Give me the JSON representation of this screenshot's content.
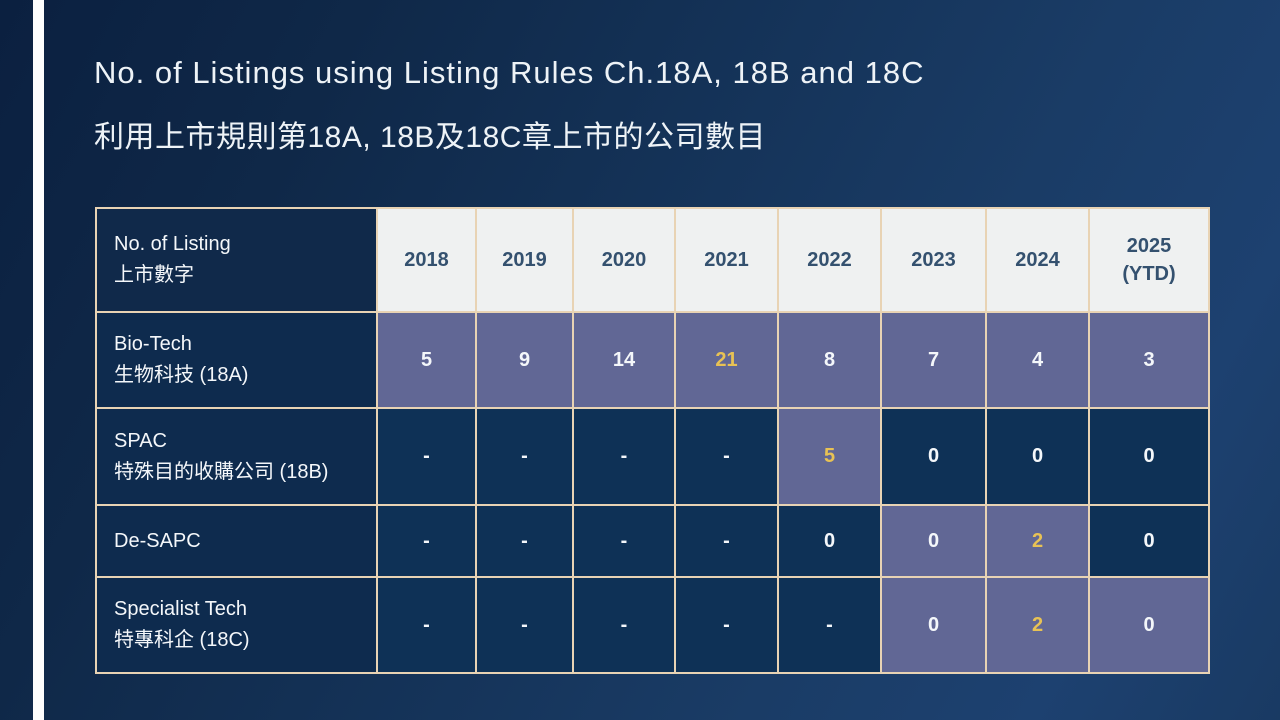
{
  "slide": {
    "title_en": "No. of Listings using Listing Rules Ch.18A, 18B and 18C",
    "title_zh": "利用上市規則第18A, 18B及18C章上市的公司數目"
  },
  "table": {
    "header": {
      "label_en": "No. of Listing",
      "label_zh": "上市數字",
      "years": [
        "2018",
        "2019",
        "2020",
        "2021",
        "2022",
        "2023",
        "2024",
        "2025\n(YTD)"
      ]
    },
    "rows": [
      {
        "label_en": "Bio-Tech",
        "label_zh": "生物科技 (18A)",
        "cells": [
          {
            "value": "5",
            "highlight": true,
            "accent": false
          },
          {
            "value": "9",
            "highlight": true,
            "accent": false
          },
          {
            "value": "14",
            "highlight": true,
            "accent": false
          },
          {
            "value": "21",
            "highlight": true,
            "accent": true
          },
          {
            "value": "8",
            "highlight": true,
            "accent": false
          },
          {
            "value": "7",
            "highlight": true,
            "accent": false
          },
          {
            "value": "4",
            "highlight": true,
            "accent": false
          },
          {
            "value": "3",
            "highlight": true,
            "accent": false
          }
        ]
      },
      {
        "label_en": "SPAC",
        "label_zh": "特殊目的收購公司 (18B)",
        "cells": [
          {
            "value": "-",
            "highlight": false,
            "accent": false
          },
          {
            "value": "-",
            "highlight": false,
            "accent": false
          },
          {
            "value": "-",
            "highlight": false,
            "accent": false
          },
          {
            "value": "-",
            "highlight": false,
            "accent": false
          },
          {
            "value": "5",
            "highlight": true,
            "accent": true
          },
          {
            "value": "0",
            "highlight": false,
            "accent": false
          },
          {
            "value": "0",
            "highlight": false,
            "accent": false
          },
          {
            "value": "0",
            "highlight": false,
            "accent": false
          }
        ]
      },
      {
        "label_en": "De-SAPC",
        "label_zh": "",
        "cells": [
          {
            "value": "-",
            "highlight": false,
            "accent": false
          },
          {
            "value": "-",
            "highlight": false,
            "accent": false
          },
          {
            "value": "-",
            "highlight": false,
            "accent": false
          },
          {
            "value": "-",
            "highlight": false,
            "accent": false
          },
          {
            "value": "0",
            "highlight": false,
            "accent": false
          },
          {
            "value": "0",
            "highlight": true,
            "accent": false
          },
          {
            "value": "2",
            "highlight": true,
            "accent": true
          },
          {
            "value": "0",
            "highlight": false,
            "accent": false
          }
        ]
      },
      {
        "label_en": "Specialist Tech",
        "label_zh": "特專科企 (18C)",
        "cells": [
          {
            "value": "-",
            "highlight": false,
            "accent": false
          },
          {
            "value": "-",
            "highlight": false,
            "accent": false
          },
          {
            "value": "-",
            "highlight": false,
            "accent": false
          },
          {
            "value": "-",
            "highlight": false,
            "accent": false
          },
          {
            "value": "-",
            "highlight": false,
            "accent": false
          },
          {
            "value": "0",
            "highlight": true,
            "accent": false
          },
          {
            "value": "2",
            "highlight": true,
            "accent": true
          },
          {
            "value": "0",
            "highlight": true,
            "accent": false
          }
        ]
      }
    ]
  },
  "colors": {
    "background_dark": "#0b2040",
    "background_light": "#1d4170",
    "stripe_white": "#fdfdfd",
    "cell_dark": "#0e3156",
    "cell_highlight": "#616795",
    "cell_label": "#0e2b4e",
    "header_light": "#eff1f1",
    "header_text": "#34516f",
    "border_tan": "#e8d3b4",
    "accent_yellow": "#e8c254",
    "text_white": "#f4f7fa"
  }
}
